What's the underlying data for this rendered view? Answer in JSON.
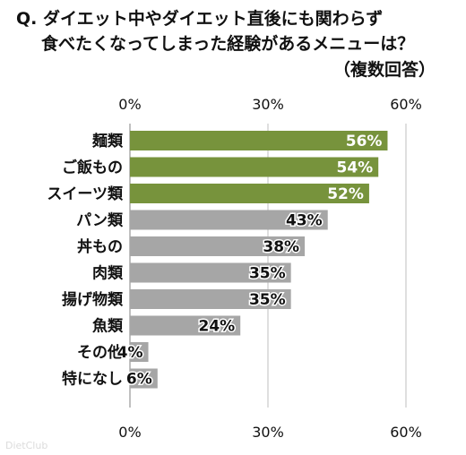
{
  "title": {
    "line1": "Q. ダイエット中やダイエット直後にも関わらず",
    "line2": "食べたくなってしまった経験があるメニューは？",
    "line3": "（複数回答）"
  },
  "colors": {
    "highlight": "#77933c",
    "other": "#a6a6a6",
    "grid": "#bfbfbf",
    "axis": "#808080",
    "label_in_bar": "#ffffff"
  },
  "watermark": "DietClub",
  "chart_data": {
    "type": "bar",
    "orientation": "horizontal",
    "categories": [
      "麺類",
      "ご飯もの",
      "スイーツ類",
      "パン類",
      "丼もの",
      "肉類",
      "揚げ物類",
      "魚類",
      "その他",
      "特になし"
    ],
    "values": [
      56,
      54,
      52,
      43,
      38,
      35,
      35,
      24,
      4,
      6
    ],
    "value_labels": [
      "56%",
      "54%",
      "52%",
      "43%",
      "38%",
      "35%",
      "35%",
      "24%",
      "4%",
      "6%"
    ],
    "highlighted_count": 3,
    "xlim": [
      0,
      60
    ],
    "ticks": [
      0,
      30,
      60
    ],
    "tick_labels": [
      "0%",
      "30%",
      "60%"
    ],
    "grid": true
  }
}
